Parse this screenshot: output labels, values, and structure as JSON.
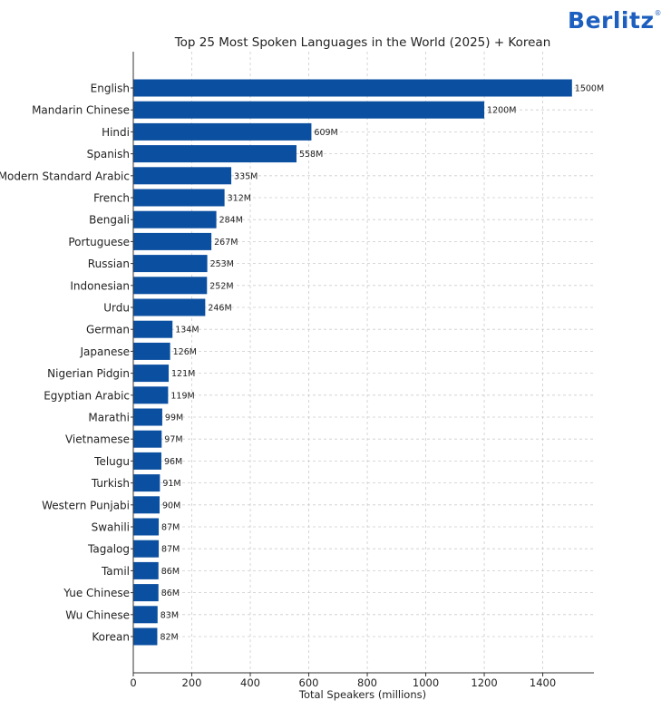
{
  "brand": {
    "name": "Berlitz",
    "mark": "®"
  },
  "colors": {
    "bar": "#0b4fa0",
    "grid": "#cccccc",
    "axis": "#333333",
    "text": "#222222"
  },
  "chart_data": {
    "type": "bar",
    "orientation": "horizontal",
    "title": "Top 25 Most Spoken Languages in the World (2025) + Korean",
    "xlabel": "Total Speakers (millions)",
    "ylabel": "",
    "xlim": [
      0,
      1575
    ],
    "xticks": [
      0,
      200,
      400,
      600,
      800,
      1000,
      1200,
      1400
    ],
    "value_suffix": "M",
    "grid": true,
    "categories": [
      "English",
      "Mandarin Chinese",
      "Hindi",
      "Spanish",
      "Modern Standard Arabic",
      "French",
      "Bengali",
      "Portuguese",
      "Russian",
      "Indonesian",
      "Urdu",
      "German",
      "Japanese",
      "Nigerian Pidgin",
      "Egyptian Arabic",
      "Marathi",
      "Vietnamese",
      "Telugu",
      "Turkish",
      "Western Punjabi",
      "Swahili",
      "Tagalog",
      "Tamil",
      "Yue Chinese",
      "Wu Chinese",
      "Korean"
    ],
    "values": [
      1500,
      1200,
      609,
      558,
      335,
      312,
      284,
      267,
      253,
      252,
      246,
      134,
      126,
      121,
      119,
      99,
      97,
      96,
      91,
      90,
      87,
      87,
      86,
      86,
      83,
      82
    ]
  }
}
